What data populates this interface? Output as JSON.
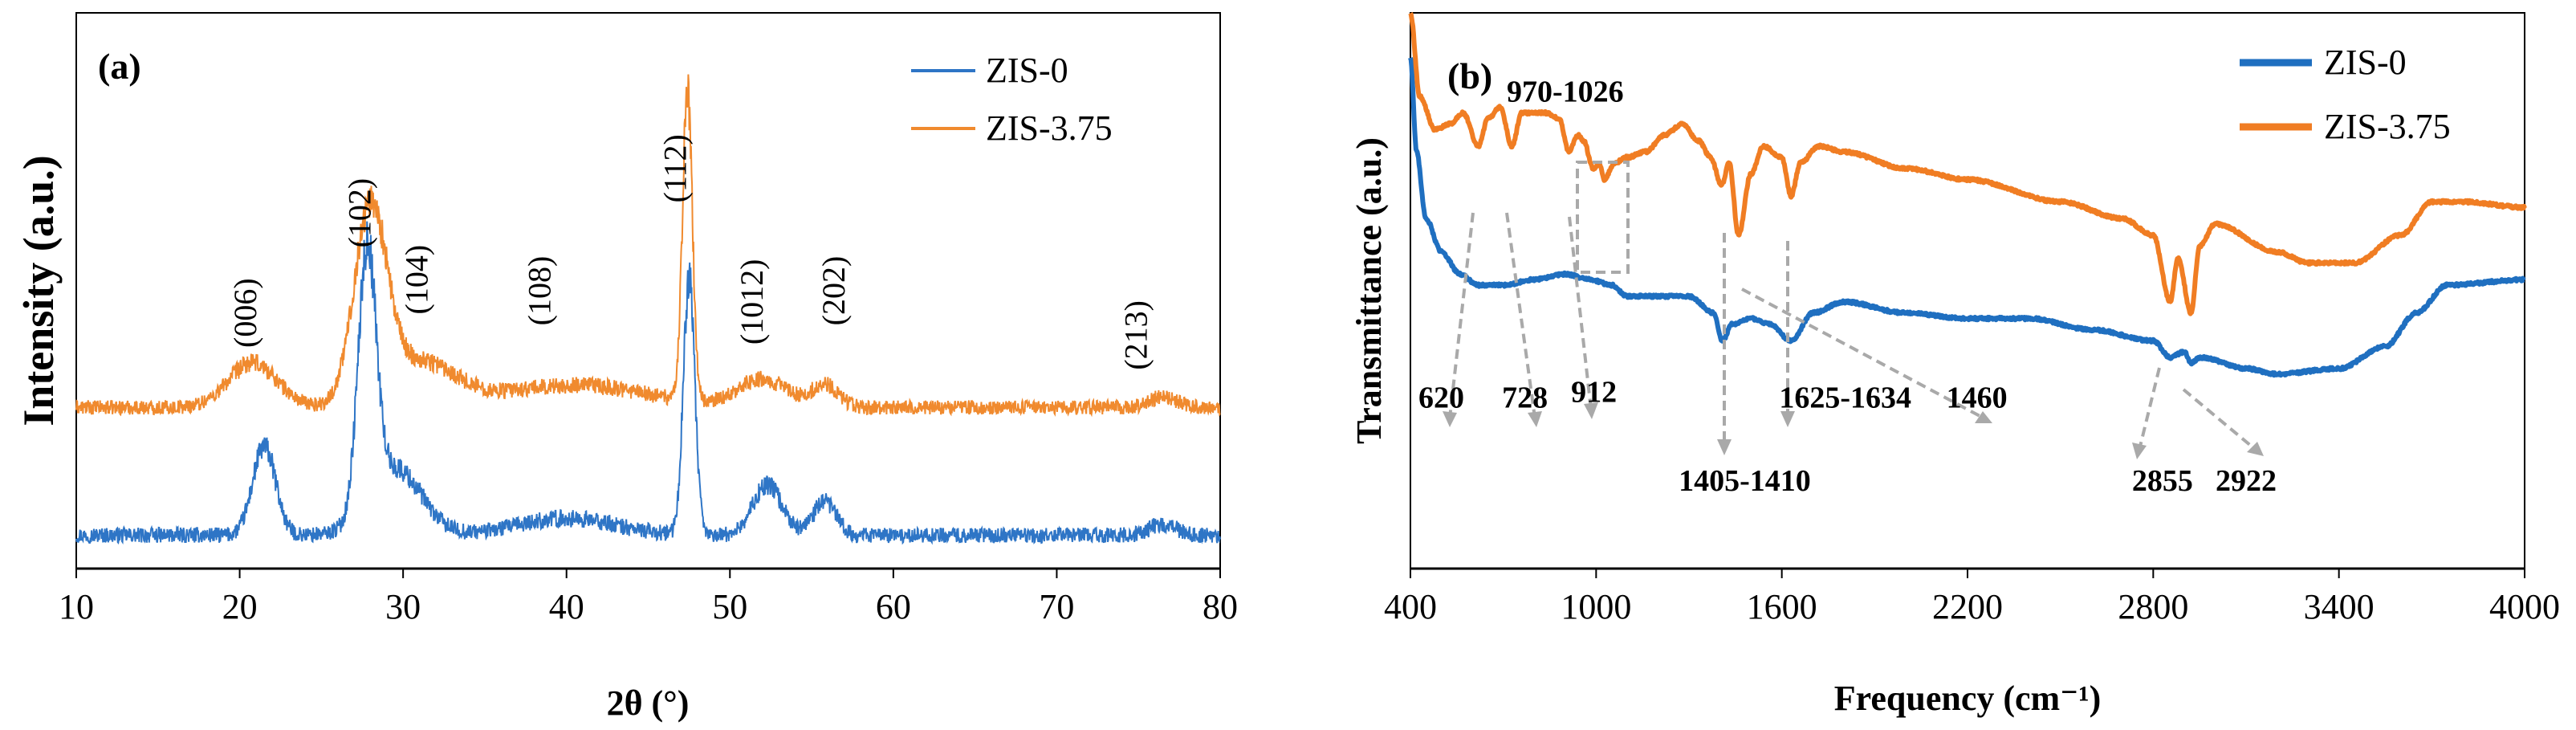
{
  "chart_data": [
    {
      "type": "line",
      "panel_label": "(a)",
      "xlabel": "2θ (°)",
      "ylabel": "Intensity (a.u.)",
      "xlim": [
        10,
        80
      ],
      "ylim": [
        0,
        100
      ],
      "xticks": [
        "10",
        "20",
        "30",
        "40",
        "50",
        "60",
        "70",
        "80"
      ],
      "xtick_values": [
        10,
        20,
        30,
        40,
        50,
        60,
        70,
        80
      ],
      "legend_position": "top-right",
      "series": [
        {
          "name": "ZIS-0",
          "color": "#2E75C6",
          "baseline": 6,
          "peaks": [
            [
              21.5,
              16,
              0.7
            ],
            [
              27.8,
              46,
              0.55
            ],
            [
              29.5,
              12,
              1.6
            ],
            [
              40.0,
              3,
              3.0
            ],
            [
              47.5,
              46,
              0.35
            ],
            [
              52.3,
              9,
              0.9
            ],
            [
              55.8,
              6,
              0.7
            ],
            [
              76.5,
              2,
              0.8
            ]
          ],
          "noise": 1.4
        },
        {
          "name": "ZIS-3.75",
          "color": "#F08A2E",
          "baseline": 29,
          "peaks": [
            [
              20.8,
              8,
              1.5
            ],
            [
              28.0,
              34,
              1.0
            ],
            [
              31.0,
              8,
              2.2
            ],
            [
              40.5,
              4,
              4.5
            ],
            [
              47.4,
              56,
              0.3
            ],
            [
              52.0,
              5,
              1.5
            ],
            [
              55.8,
              4,
              0.8
            ],
            [
              76.5,
              2,
              0.8
            ]
          ],
          "noise": 1.3
        }
      ],
      "annotations": [
        {
          "text": "(006)",
          "x": 21,
          "y": 46
        },
        {
          "text": "(102)",
          "x": 28,
          "y": 64
        },
        {
          "text": "(104)",
          "x": 31.5,
          "y": 52
        },
        {
          "text": "(108)",
          "x": 39,
          "y": 50
        },
        {
          "text": "(112)",
          "x": 47.3,
          "y": 72
        },
        {
          "text": "(1012)",
          "x": 52,
          "y": 48
        },
        {
          "text": "(202)",
          "x": 57,
          "y": 50
        },
        {
          "text": "(213)",
          "x": 75.5,
          "y": 42
        }
      ]
    },
    {
      "type": "line",
      "panel_label": "(b)",
      "xlabel": "Frequency (cm⁻¹)",
      "ylabel": "Transmittance (a.u.)",
      "xlim": [
        400,
        4000
      ],
      "ylim": [
        0,
        100
      ],
      "xticks": [
        "400",
        "1000",
        "1600",
        "2200",
        "2800",
        "3400",
        "4000"
      ],
      "xtick_values": [
        400,
        1000,
        1600,
        2200,
        2800,
        3400,
        4000
      ],
      "legend_position": "top-right",
      "series": [
        {
          "name": "ZIS-0",
          "color": "#1F6FC0",
          "points": [
            [
              400,
              92
            ],
            [
              420,
              75
            ],
            [
              450,
              63
            ],
            [
              500,
              57
            ],
            [
              560,
              53
            ],
            [
              620,
              51
            ],
            [
              700,
              51
            ],
            [
              800,
              52
            ],
            [
              900,
              53
            ],
            [
              980,
              52
            ],
            [
              1050,
              51
            ],
            [
              1100,
              49
            ],
            [
              1200,
              49
            ],
            [
              1300,
              49
            ],
            [
              1380,
              46
            ],
            [
              1408,
              41
            ],
            [
              1440,
              44
            ],
            [
              1500,
              45
            ],
            [
              1560,
              44
            ],
            [
              1630,
              41
            ],
            [
              1700,
              46
            ],
            [
              1800,
              48
            ],
            [
              2000,
              46
            ],
            [
              2200,
              45
            ],
            [
              2400,
              45
            ],
            [
              2600,
              43
            ],
            [
              2800,
              41
            ],
            [
              2855,
              38
            ],
            [
              2900,
              39
            ],
            [
              2922,
              37
            ],
            [
              2950,
              38
            ],
            [
              3100,
              36
            ],
            [
              3200,
              35
            ],
            [
              3400,
              36
            ],
            [
              3550,
              40
            ],
            [
              3650,
              46
            ],
            [
              3750,
              51
            ],
            [
              4000,
              52
            ]
          ]
        },
        {
          "name": "ZIS-3.75",
          "color": "#F07D23",
          "points": [
            [
              400,
              100
            ],
            [
              430,
              85
            ],
            [
              480,
              79
            ],
            [
              530,
              80
            ],
            [
              570,
              82
            ],
            [
              620,
              76
            ],
            [
              650,
              81
            ],
            [
              690,
              83
            ],
            [
              728,
              76
            ],
            [
              760,
              82
            ],
            [
              840,
              82
            ],
            [
              880,
              81
            ],
            [
              912,
              75
            ],
            [
              940,
              78
            ],
            [
              960,
              77
            ],
            [
              990,
              72
            ],
            [
              1010,
              73
            ],
            [
              1026,
              70
            ],
            [
              1060,
              73
            ],
            [
              1100,
              74
            ],
            [
              1160,
              75
            ],
            [
              1220,
              78
            ],
            [
              1280,
              80
            ],
            [
              1330,
              77
            ],
            [
              1370,
              74
            ],
            [
              1405,
              69
            ],
            [
              1430,
              73
            ],
            [
              1460,
              60
            ],
            [
              1500,
              71
            ],
            [
              1540,
              76
            ],
            [
              1600,
              74
            ],
            [
              1630,
              67
            ],
            [
              1660,
              73
            ],
            [
              1720,
              76
            ],
            [
              1800,
              75
            ],
            [
              2000,
              72
            ],
            [
              2200,
              70
            ],
            [
              2500,
              66
            ],
            [
              2700,
              63
            ],
            [
              2800,
              60
            ],
            [
              2855,
              48
            ],
            [
              2880,
              56
            ],
            [
              2922,
              46
            ],
            [
              2950,
              58
            ],
            [
              3000,
              62
            ],
            [
              3200,
              57
            ],
            [
              3300,
              55
            ],
            [
              3450,
              55
            ],
            [
              3600,
              60
            ],
            [
              3700,
              66
            ],
            [
              3800,
              66
            ],
            [
              4000,
              65
            ]
          ]
        }
      ],
      "annotations": [
        {
          "text": "970-1026",
          "x": 900,
          "y": 84
        },
        {
          "text": "620",
          "x": 500,
          "y": 29
        },
        {
          "text": "728",
          "x": 770,
          "y": 29
        },
        {
          "text": "912",
          "x": 993,
          "y": 30
        },
        {
          "text": "1405-1410",
          "x": 1480,
          "y": 14
        },
        {
          "text": "1625-1634",
          "x": 1805,
          "y": 29
        },
        {
          "text": "1460",
          "x": 2230,
          "y": 29
        },
        {
          "text": "2855",
          "x": 2830,
          "y": 14
        },
        {
          "text": "2922",
          "x": 3100,
          "y": 14
        }
      ]
    }
  ]
}
